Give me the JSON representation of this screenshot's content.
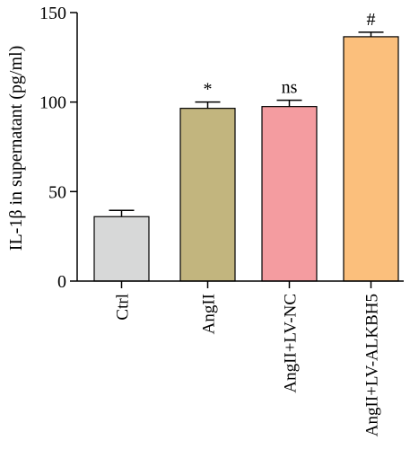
{
  "chart_data": {
    "type": "bar",
    "title": "",
    "xlabel": "",
    "ylabel": "IL-1β in supernatant (pg/ml)",
    "ylim": [
      0,
      150
    ],
    "yticks": [
      0,
      50,
      100,
      150
    ],
    "grid": false,
    "categories": [
      "Ctrl",
      "AngII",
      "AngII+LV-NC",
      "AngII+LV-ALKBH5"
    ],
    "values": [
      36,
      96.5,
      97.5,
      136.5
    ],
    "errors": [
      3.5,
      3.5,
      3.5,
      2.5
    ],
    "annotations": [
      "",
      "*",
      "ns",
      "#"
    ],
    "colors": [
      "#d7d8d8",
      "#c2b57e",
      "#f49ca0",
      "#fbbf7c"
    ]
  }
}
